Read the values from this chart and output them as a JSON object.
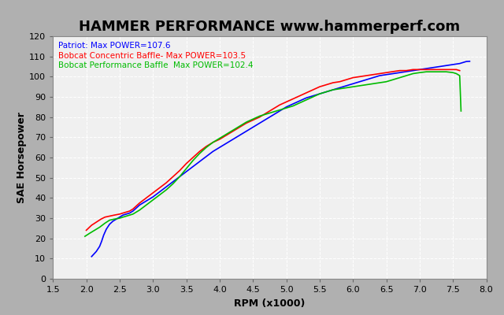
{
  "title": "HAMMER PERFORMANCE www.hammerperf.com",
  "xlabel": "RPM (x1000)",
  "ylabel": "SAE Horsepower",
  "xlim": [
    1.5,
    8.0
  ],
  "ylim": [
    0,
    120
  ],
  "xticks": [
    1.5,
    2.0,
    2.5,
    3.0,
    3.5,
    4.0,
    4.5,
    5.0,
    5.5,
    6.0,
    6.5,
    7.0,
    7.5,
    8.0
  ],
  "yticks": [
    0,
    10,
    20,
    30,
    40,
    50,
    60,
    70,
    80,
    90,
    100,
    110,
    120
  ],
  "bg_color": "#b0b0b0",
  "plot_bg_color": "#f0f0f0",
  "grid_color": "#ffffff",
  "title_color": "#000000",
  "title_fontsize": 13,
  "series": [
    {
      "label": "Patriot: Max POWER=107.6",
      "color": "#0000ff",
      "linewidth": 1.2,
      "rpm": [
        2.08,
        2.15,
        2.2,
        2.23,
        2.26,
        2.3,
        2.35,
        2.4,
        2.45,
        2.5,
        2.55,
        2.6,
        2.65,
        2.7,
        2.75,
        2.8,
        2.9,
        3.0,
        3.1,
        3.2,
        3.3,
        3.4,
        3.5,
        3.6,
        3.7,
        3.8,
        3.9,
        4.0,
        4.1,
        4.2,
        4.3,
        4.4,
        4.5,
        4.6,
        4.7,
        4.8,
        4.9,
        5.0,
        5.1,
        5.2,
        5.3,
        5.4,
        5.5,
        5.6,
        5.7,
        5.8,
        5.9,
        6.0,
        6.1,
        6.2,
        6.3,
        6.4,
        6.5,
        6.6,
        6.7,
        6.8,
        6.9,
        7.0,
        7.1,
        7.2,
        7.3,
        7.4,
        7.5,
        7.6,
        7.7,
        7.75
      ],
      "hp": [
        11.0,
        13.5,
        16.0,
        18.5,
        21.5,
        24.5,
        27.0,
        28.5,
        29.5,
        30.5,
        31.5,
        32.0,
        32.5,
        33.5,
        35.0,
        36.5,
        38.5,
        40.5,
        43.0,
        45.5,
        48.0,
        50.5,
        53.0,
        55.5,
        58.0,
        60.5,
        63.0,
        65.0,
        67.0,
        69.0,
        71.0,
        73.0,
        75.0,
        77.0,
        79.0,
        81.0,
        83.0,
        85.0,
        86.5,
        88.0,
        89.5,
        90.5,
        91.5,
        92.5,
        93.5,
        94.5,
        95.5,
        96.5,
        97.5,
        98.5,
        99.5,
        100.5,
        101.0,
        101.5,
        102.0,
        102.5,
        103.0,
        103.5,
        104.0,
        104.5,
        105.0,
        105.5,
        106.0,
        106.5,
        107.5,
        107.6
      ]
    },
    {
      "label": "Bobcat Concentric Baffle- Max POWER=103.5",
      "color": "#ff0000",
      "linewidth": 1.2,
      "rpm": [
        2.0,
        2.08,
        2.15,
        2.22,
        2.28,
        2.35,
        2.42,
        2.5,
        2.55,
        2.6,
        2.65,
        2.7,
        2.75,
        2.8,
        2.9,
        3.0,
        3.1,
        3.2,
        3.3,
        3.4,
        3.5,
        3.6,
        3.7,
        3.8,
        3.9,
        4.0,
        4.1,
        4.2,
        4.3,
        4.4,
        4.5,
        4.6,
        4.7,
        4.8,
        4.9,
        5.0,
        5.1,
        5.2,
        5.3,
        5.4,
        5.5,
        5.6,
        5.7,
        5.8,
        5.9,
        6.0,
        6.1,
        6.2,
        6.3,
        6.4,
        6.5,
        6.6,
        6.7,
        6.8,
        6.9,
        7.0,
        7.1,
        7.2,
        7.3,
        7.4,
        7.5,
        7.55,
        7.6
      ],
      "hp": [
        24.0,
        26.5,
        28.0,
        29.5,
        30.5,
        31.0,
        31.5,
        32.0,
        32.5,
        33.0,
        33.5,
        34.5,
        36.0,
        37.5,
        40.0,
        42.5,
        45.0,
        47.5,
        50.5,
        53.5,
        57.0,
        60.0,
        63.0,
        65.5,
        67.5,
        69.0,
        71.0,
        73.0,
        75.0,
        77.0,
        78.5,
        80.0,
        82.0,
        84.0,
        86.0,
        87.5,
        89.0,
        90.5,
        92.0,
        93.5,
        95.0,
        96.0,
        97.0,
        97.5,
        98.5,
        99.5,
        100.0,
        100.5,
        101.0,
        101.5,
        102.0,
        102.5,
        103.0,
        103.0,
        103.5,
        103.5,
        103.5,
        103.5,
        103.5,
        103.5,
        103.5,
        103.5,
        103.0
      ]
    },
    {
      "label": "Bobcat Performance Baffle  Max POWER=102.4",
      "color": "#00bb00",
      "linewidth": 1.2,
      "rpm": [
        1.98,
        2.05,
        2.1,
        2.15,
        2.2,
        2.28,
        2.35,
        2.42,
        2.5,
        2.55,
        2.6,
        2.65,
        2.7,
        2.8,
        2.9,
        3.0,
        3.1,
        3.2,
        3.3,
        3.4,
        3.5,
        3.6,
        3.7,
        3.8,
        3.9,
        4.0,
        4.1,
        4.2,
        4.3,
        4.4,
        4.5,
        4.6,
        4.7,
        4.8,
        4.9,
        5.0,
        5.1,
        5.2,
        5.3,
        5.4,
        5.5,
        5.6,
        5.7,
        5.8,
        5.9,
        6.0,
        6.1,
        6.2,
        6.3,
        6.4,
        6.5,
        6.6,
        6.7,
        6.8,
        6.9,
        7.0,
        7.1,
        7.2,
        7.3,
        7.4,
        7.5,
        7.55,
        7.6,
        7.62
      ],
      "hp": [
        21.0,
        22.5,
        23.5,
        24.5,
        25.5,
        27.5,
        29.0,
        29.5,
        30.0,
        30.5,
        31.0,
        31.5,
        32.0,
        34.0,
        36.5,
        39.0,
        41.5,
        44.0,
        47.0,
        50.5,
        54.5,
        58.5,
        62.0,
        65.0,
        67.5,
        69.5,
        71.5,
        73.5,
        75.5,
        77.5,
        79.0,
        80.5,
        81.5,
        82.5,
        83.5,
        84.5,
        85.5,
        87.0,
        88.5,
        90.0,
        91.5,
        92.5,
        93.5,
        94.0,
        94.5,
        95.0,
        95.5,
        96.0,
        96.5,
        97.0,
        97.5,
        98.5,
        99.5,
        100.5,
        101.5,
        102.0,
        102.4,
        102.4,
        102.4,
        102.4,
        102.0,
        101.5,
        100.5,
        83.0
      ]
    }
  ]
}
